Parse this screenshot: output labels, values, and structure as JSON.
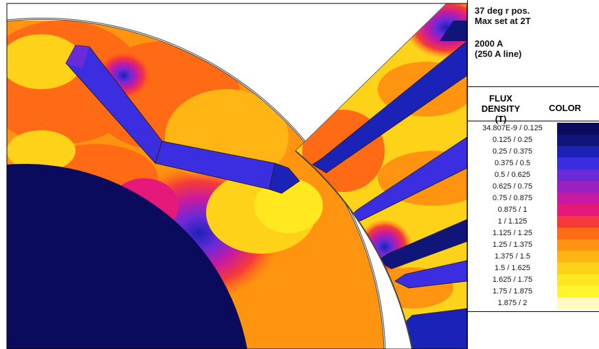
{
  "notes": {
    "line1": "37 deg r pos.",
    "line2": "Max set at 2T",
    "line3": "2000 A",
    "line4": "(250 A line)"
  },
  "legend": {
    "header_label": "FLUX DENSITY",
    "header_unit": "(T)",
    "header_color": "COLOR",
    "rows": [
      {
        "range": "34.807E-9 / 0.125",
        "color": "#0b0b5e"
      },
      {
        "range": "0.125 / 0.25",
        "color": "#10157a"
      },
      {
        "range": "0.25 / 0.375",
        "color": "#1a22b8"
      },
      {
        "range": "0.375 / 0.5",
        "color": "#3b2ee0"
      },
      {
        "range": "0.5 / 0.625",
        "color": "#6a2ad8"
      },
      {
        "range": "0.625 / 0.75",
        "color": "#9a20c0"
      },
      {
        "range": "0.75 / 0.875",
        "color": "#c81aa0"
      },
      {
        "range": "0.875 / 1",
        "color": "#e5197a"
      },
      {
        "range": "1 / 1.125",
        "color": "#f53a3a"
      },
      {
        "range": "1.125 / 1.25",
        "color": "#ff6a14"
      },
      {
        "range": "1.25 / 1.375",
        "color": "#ff9410"
      },
      {
        "range": "1.375 / 1.5",
        "color": "#ffb614"
      },
      {
        "range": "1.5 / 1.625",
        "color": "#ffd21a"
      },
      {
        "range": "1.625 / 1.75",
        "color": "#ffe820"
      },
      {
        "range": "1.75 / 1.875",
        "color": "#fff52a"
      },
      {
        "range": "1.875 / 2",
        "color": "#fffbc0"
      }
    ]
  }
}
